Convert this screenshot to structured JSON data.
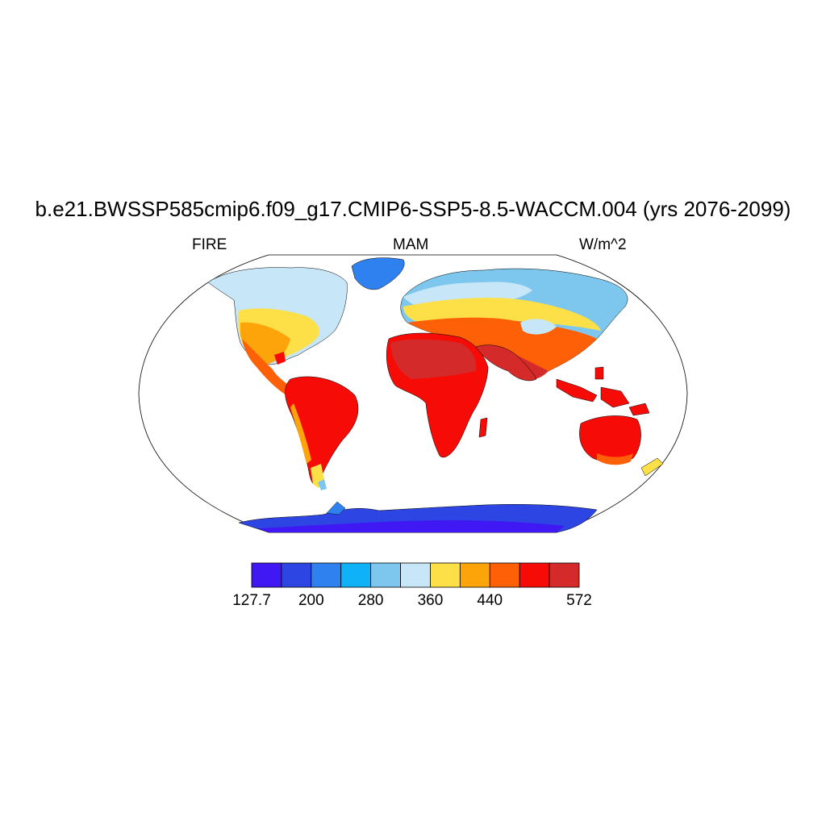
{
  "title": "b.e21.BWSSP585cmip6.f09_g17.CMIP6-SSP5-8.5-WACCM.004 (yrs 2076-2099)",
  "left_string": "FIRE",
  "center_string": "MAM",
  "right_string": "W/m^2",
  "colorbar": {
    "colors": [
      "#3f18f4",
      "#2c45e3",
      "#2e81ef",
      "#0fb2f6",
      "#7dc7ee",
      "#c7e6f7",
      "#fde047",
      "#fda40b",
      "#fd6006",
      "#f70b06",
      "#d42a2a"
    ],
    "labels": [
      "127.7",
      "200",
      "280",
      "360",
      "440",
      "572"
    ]
  }
}
